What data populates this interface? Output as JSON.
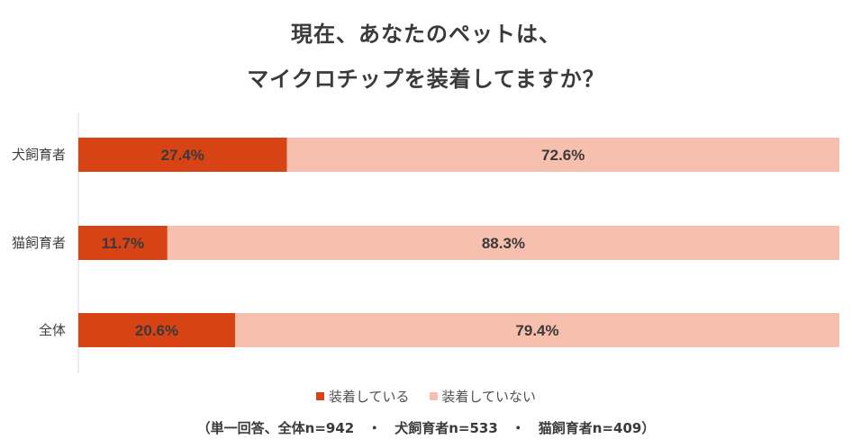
{
  "chart_data": {
    "type": "bar",
    "orientation": "horizontal",
    "stacked": true,
    "title_lines": [
      "現在、あなたのペットは、",
      "マイクロチップを装着してますか？"
    ],
    "categories": [
      "犬飼育者",
      "猫飼育者",
      "全体"
    ],
    "series": [
      {
        "name": "装着している",
        "values": [
          27.4,
          11.7,
          20.6
        ],
        "labels": [
          "27.4%",
          "11.7%",
          "20.6%"
        ],
        "color": "#d84315"
      },
      {
        "name": "装着していない",
        "values": [
          72.6,
          88.3,
          79.4
        ],
        "labels": [
          "72.6%",
          "88.3%",
          "79.4%"
        ],
        "color": "#f6bfae"
      }
    ],
    "xlim": [
      0,
      100
    ],
    "grid": false,
    "legend_position": "bottom",
    "note": "（単一回答、全体n=942　・　犬飼育者n=533　・　猫飼育者n=409）"
  }
}
